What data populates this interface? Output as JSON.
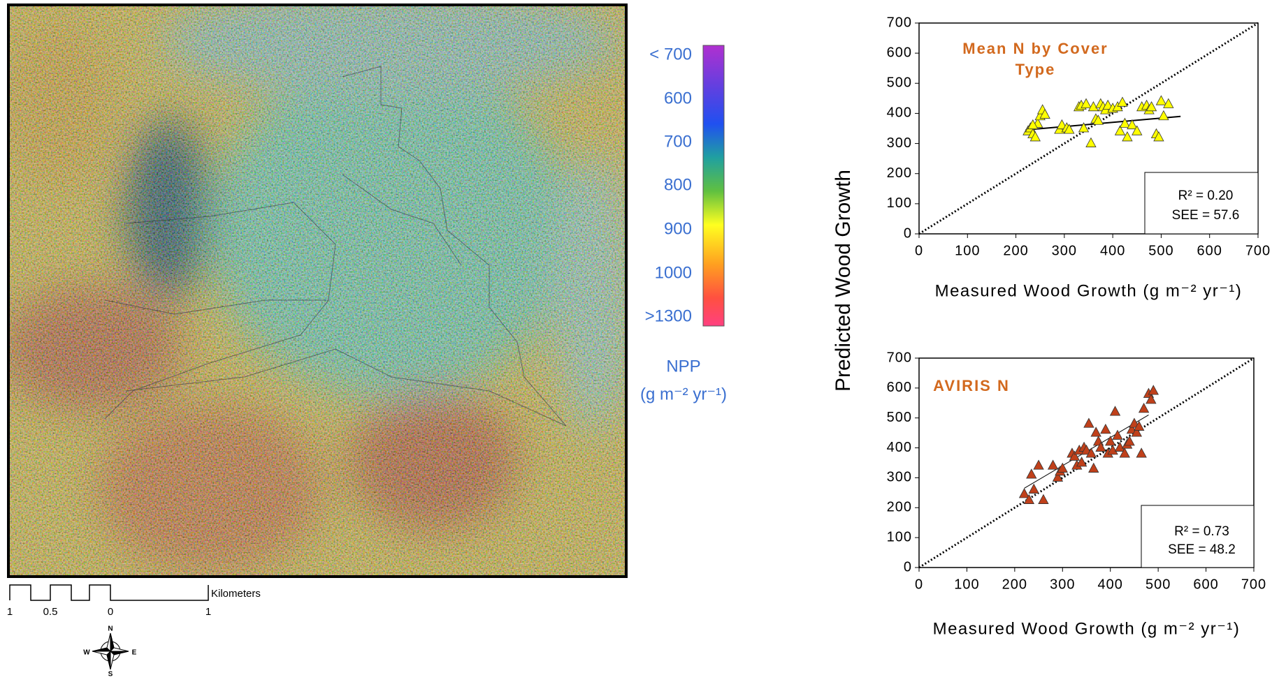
{
  "map": {
    "colorbar_labels": [
      "< 700",
      "600",
      "700",
      "800",
      "900",
      "1000",
      ">1300"
    ],
    "legend_title": "NPP",
    "legend_unit": "(g m⁻² yr⁻¹)",
    "scale_labels": [
      "1",
      "0.5",
      "0",
      "1"
    ],
    "scale_unit": "Kilometers",
    "compass": [
      "N",
      "S",
      "E",
      "W"
    ]
  },
  "ylabel": "Predicted  Wood Growth",
  "chart_data": [
    {
      "type": "scatter",
      "title": "Mean N by Cover Type",
      "xlabel": "Measured Wood Growth (g m⁻² yr⁻¹)",
      "color": "#ffff00",
      "x": [
        225,
        230,
        235,
        240,
        245,
        250,
        255,
        260,
        235,
        290,
        295,
        305,
        310,
        330,
        335,
        340,
        345,
        355,
        360,
        365,
        370,
        375,
        380,
        385,
        390,
        400,
        410,
        415,
        420,
        425,
        430,
        440,
        450,
        460,
        470,
        475,
        480,
        490,
        495,
        500,
        505,
        515
      ],
      "y": [
        340,
        350,
        330,
        320,
        365,
        390,
        410,
        395,
        360,
        345,
        360,
        350,
        345,
        420,
        425,
        350,
        430,
        300,
        420,
        380,
        375,
        430,
        420,
        410,
        425,
        415,
        420,
        340,
        435,
        365,
        320,
        360,
        340,
        420,
        425,
        410,
        420,
        330,
        320,
        440,
        390,
        430
      ],
      "trend_line": {
        "x": [
          220,
          540
        ],
        "y": [
          345,
          390
        ]
      },
      "stats": [
        "R² = 0.20",
        "SEE = 57.6"
      ],
      "xlim": [
        0,
        700
      ],
      "ylim": [
        0,
        700
      ],
      "xticks": [
        0,
        100,
        200,
        300,
        400,
        500,
        600,
        700
      ],
      "yticks": [
        0,
        100,
        200,
        300,
        400,
        500,
        600,
        700
      ]
    },
    {
      "type": "scatter",
      "title": "AVIRIS N",
      "xlabel": "Measured Wood Growth (g m⁻² yr⁻¹)",
      "color": "#c0401a",
      "x": [
        220,
        230,
        235,
        240,
        250,
        260,
        280,
        290,
        295,
        300,
        320,
        325,
        330,
        335,
        340,
        345,
        350,
        355,
        360,
        365,
        370,
        375,
        380,
        390,
        395,
        400,
        405,
        410,
        415,
        420,
        430,
        435,
        440,
        445,
        450,
        455,
        460,
        465,
        470,
        480,
        485,
        490
      ],
      "y": [
        245,
        225,
        310,
        260,
        340,
        225,
        340,
        300,
        320,
        330,
        380,
        370,
        340,
        390,
        350,
        400,
        390,
        480,
        380,
        330,
        450,
        420,
        400,
        460,
        380,
        420,
        390,
        520,
        440,
        400,
        380,
        410,
        420,
        460,
        480,
        450,
        470,
        380,
        530,
        580,
        560,
        590
      ],
      "trend_line": {
        "x": [
          220,
          480
        ],
        "y": [
          265,
          510
        ]
      },
      "stats": [
        "R² = 0.73",
        "SEE = 48.2"
      ],
      "xlim": [
        0,
        700
      ],
      "ylim": [
        0,
        700
      ],
      "xticks": [
        0,
        100,
        200,
        300,
        400,
        500,
        600,
        700
      ],
      "yticks": [
        0,
        100,
        200,
        300,
        400,
        500,
        600,
        700
      ]
    }
  ]
}
